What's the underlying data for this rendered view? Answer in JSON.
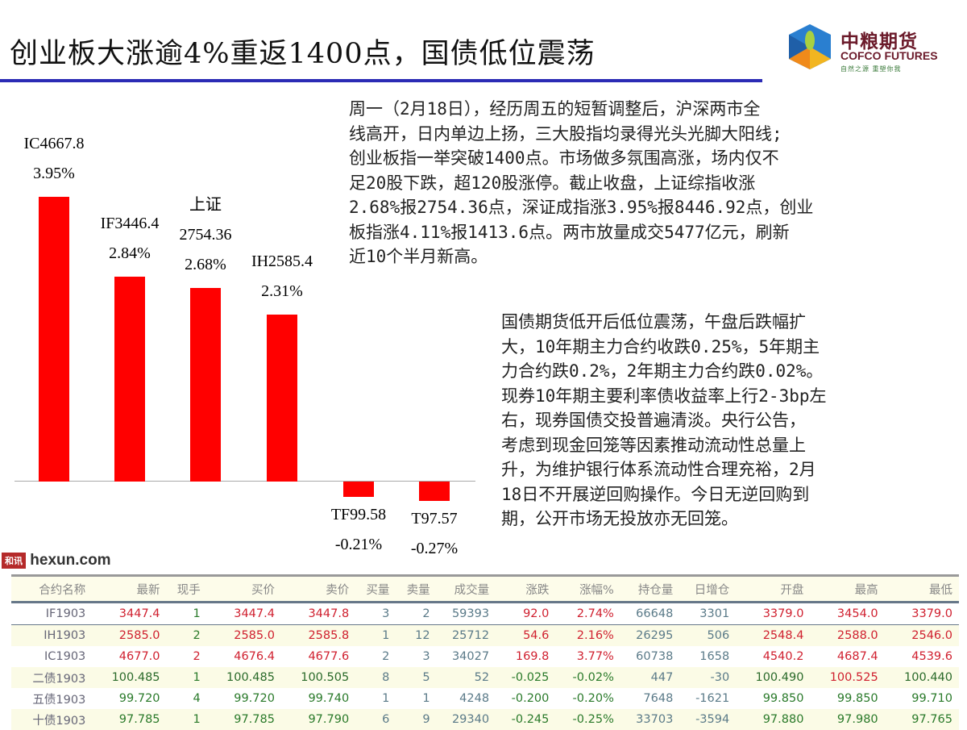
{
  "title": "创业板大涨逾4%重返1400点，国债低位震荡",
  "logo": {
    "cn": "中粮期货",
    "en": "COFCO FUTURES",
    "tagline": "自然之源 重塑你我"
  },
  "colors": {
    "bar": "#ff0000",
    "rule": "#2b2bb5",
    "up": "#d0202f",
    "down": "#2a7a2a"
  },
  "chart_data": {
    "type": "bar",
    "categories": [
      "IC4667.8",
      "IF3446.4",
      "上证 2754.36",
      "IH2585.4",
      "TF99.58",
      "T97.57"
    ],
    "values": [
      3.95,
      2.84,
      2.68,
      2.31,
      -0.21,
      -0.27
    ],
    "labels": [
      [
        "IC4667.8",
        "3.95%"
      ],
      [
        "IF3446.4",
        "2.84%"
      ],
      [
        "上证",
        "2754.36",
        "2.68%"
      ],
      [
        "IH2585.4",
        "2.31%"
      ],
      [
        "TF99.58",
        "-0.21%"
      ],
      [
        "T97.57",
        "-0.27%"
      ]
    ],
    "unit": "%"
  },
  "para1": [
    "周一（2月18日），经历周五的短暂调整后，沪深两市全",
    "线高开，日内单边上扬，三大股指均录得光头光脚大阳线;",
    "创业板指一举突破1400点。市场做多氛围高涨，场内仅不",
    "足20股下跌，超120股涨停。截止收盘，上证综指收涨",
    "2.68%报2754.36点，深证成指涨3.95%报8446.92点，创业",
    "板指涨4.11%报1413.6点。两市放量成交5477亿元，刷新",
    "近10个半月新高。"
  ],
  "para2": [
    "国债期货低开后低位震荡，午盘后跌幅扩",
    "大，10年期主力合约收跌0.25%，5年期主",
    "力合约跌0.2%，2年期主力合约跌0.02%。",
    "现券10年期主要利率债收益率上行2-3bp左",
    "右，现券国债交投普遍清淡。央行公告，",
    "考虑到现金回笼等因素推动流动性总量上",
    "升，为维护银行体系流动性合理充裕，2月",
    "18日不开展逆回购操作。今日无逆回购到",
    "期，公开市场无投放亦无回笼。"
  ],
  "table": {
    "headers": [
      "合约名称",
      "最新",
      "现手",
      "买价",
      "卖价",
      "买量",
      "卖量",
      "成交量",
      "涨跌",
      "涨幅%",
      "持仓量",
      "日增仓",
      "开盘",
      "最高",
      "最低"
    ],
    "rows": [
      [
        "IF1903",
        "3447.4",
        "1",
        "3447.4",
        "3447.8",
        "3",
        "2",
        "59393",
        "92.0",
        "2.74%",
        "66648",
        "3301",
        "3379.0",
        "3454.0",
        "3379.0"
      ],
      [
        "IH1903",
        "2585.0",
        "2",
        "2585.0",
        "2585.8",
        "1",
        "12",
        "25712",
        "54.6",
        "2.16%",
        "26295",
        "506",
        "2548.4",
        "2588.0",
        "2546.0"
      ],
      [
        "IC1903",
        "4677.0",
        "2",
        "4676.4",
        "4677.6",
        "2",
        "3",
        "34027",
        "169.8",
        "3.77%",
        "60738",
        "1658",
        "4540.2",
        "4687.4",
        "4539.6"
      ],
      [
        "二债1903",
        "100.485",
        "1",
        "100.485",
        "100.505",
        "8",
        "5",
        "52",
        "-0.025",
        "-0.02%",
        "447",
        "-30",
        "100.490",
        "100.525",
        "100.440"
      ],
      [
        "五债1903",
        "99.720",
        "4",
        "99.720",
        "99.740",
        "1",
        "1",
        "4248",
        "-0.200",
        "-0.20%",
        "7648",
        "-1621",
        "99.850",
        "99.850",
        "99.710"
      ],
      [
        "十债1903",
        "97.785",
        "1",
        "97.785",
        "97.790",
        "6",
        "9",
        "29340",
        "-0.245",
        "-0.25%",
        "33703",
        "-3594",
        "97.880",
        "97.980",
        "97.765"
      ]
    ],
    "color_classes": [
      [
        "name",
        "r",
        "g",
        "r",
        "r",
        "b",
        "b",
        "b",
        "r",
        "r",
        "b",
        "b",
        "r",
        "r",
        "r"
      ],
      [
        "name",
        "r",
        "g",
        "r",
        "r",
        "b",
        "b",
        "b",
        "r",
        "r",
        "b",
        "b",
        "r",
        "r",
        "r"
      ],
      [
        "name",
        "r",
        "r",
        "r",
        "r",
        "b",
        "b",
        "b",
        "r",
        "r",
        "b",
        "b",
        "r",
        "r",
        "r"
      ],
      [
        "name",
        "n",
        "g",
        "n",
        "n",
        "b",
        "b",
        "b",
        "g",
        "g",
        "b",
        "b",
        "n",
        "r",
        "n"
      ],
      [
        "name",
        "g",
        "g",
        "g",
        "g",
        "b",
        "b",
        "b",
        "g",
        "g",
        "b",
        "b",
        "g",
        "g",
        "g"
      ],
      [
        "name",
        "g",
        "g",
        "g",
        "g",
        "b",
        "b",
        "b",
        "g",
        "g",
        "b",
        "b",
        "g",
        "g",
        "g"
      ]
    ]
  },
  "watermark": {
    "badge": "和讯",
    "text": "hexun.com"
  }
}
